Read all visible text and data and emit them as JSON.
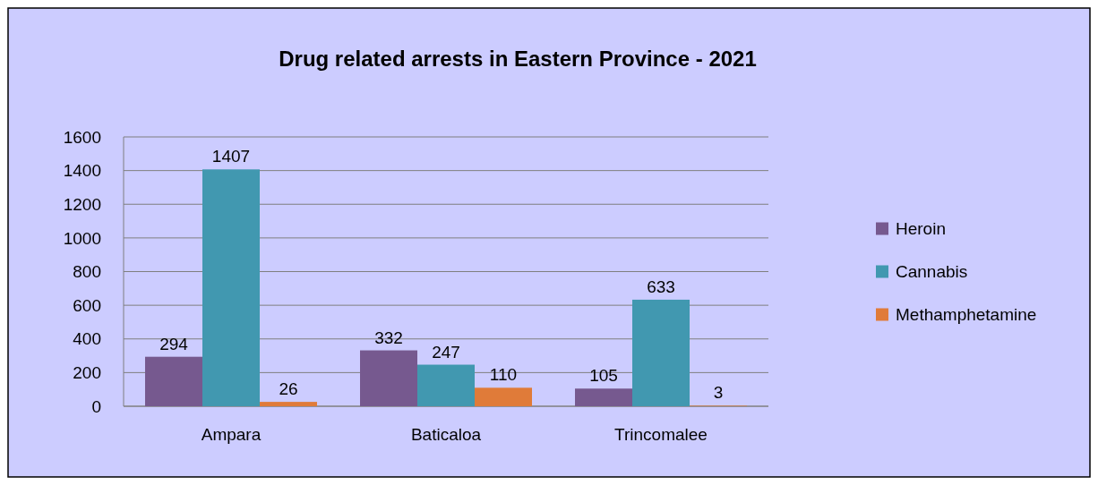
{
  "chart_data": {
    "type": "bar",
    "title": "Drug related arrests in Eastern Province - 2021",
    "categories": [
      "Ampara",
      "Baticaloa",
      "Trincomalee"
    ],
    "series": [
      {
        "name": "Heroin",
        "color": "#76598f",
        "values": [
          294,
          332,
          105
        ]
      },
      {
        "name": "Cannabis",
        "color": "#4198b0",
        "values": [
          1407,
          247,
          633
        ]
      },
      {
        "name": "Methamphetamine",
        "color": "#e07b39",
        "values": [
          26,
          110,
          3
        ]
      }
    ],
    "ylim": [
      0,
      1600
    ],
    "yticks": [
      0,
      200,
      400,
      600,
      800,
      1000,
      1200,
      1400,
      1600
    ],
    "grid": "y",
    "legend": "right",
    "data_labels": true
  }
}
